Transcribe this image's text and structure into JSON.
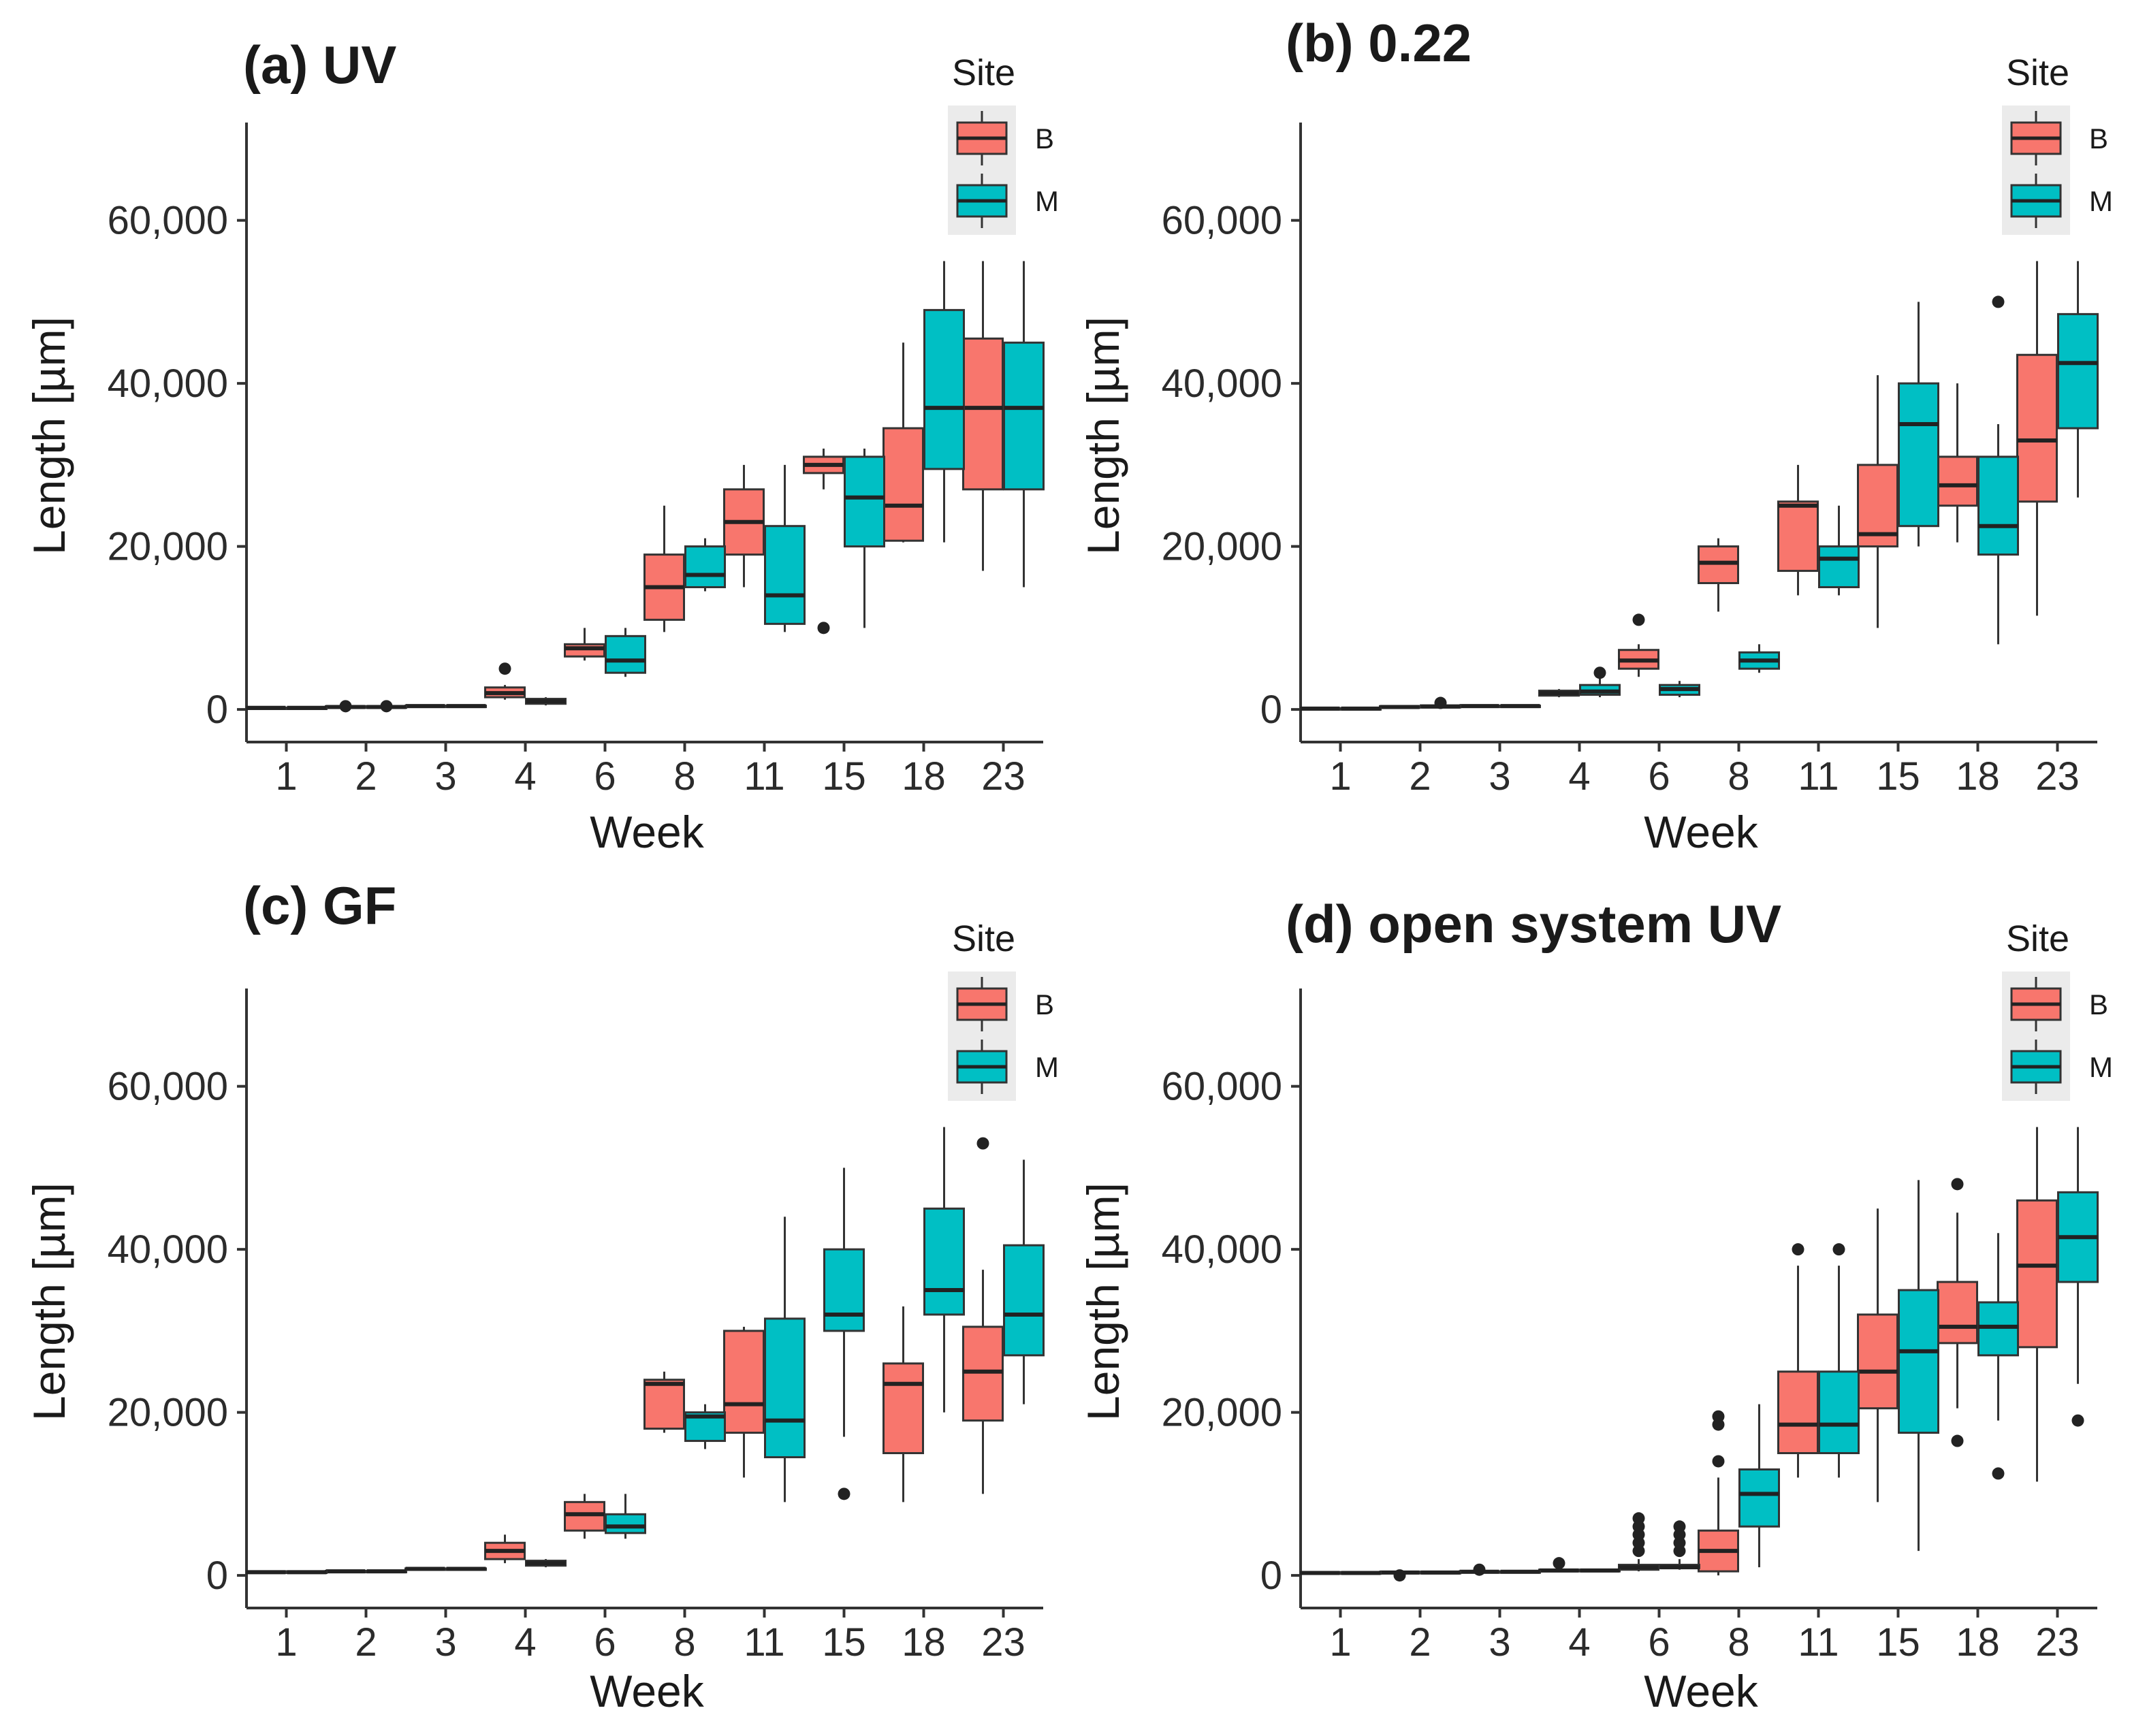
{
  "figure": {
    "colors": {
      "B": "#F8766D",
      "M": "#00BFC4",
      "outline": "#333333",
      "legend_bg": "#ebebeb"
    }
  },
  "chart_data": [
    {
      "type": "boxplot",
      "title": "(a) UV",
      "xlabel": "Week",
      "ylabel": "Length [µm]",
      "ylim": [
        -4000,
        72000
      ],
      "yticks": [
        0,
        20000,
        40000,
        60000
      ],
      "ytick_labels": [
        "0",
        "20,000",
        "40,000",
        "60,000"
      ],
      "categories": [
        "1",
        "2",
        "3",
        "4",
        "6",
        "8",
        "11",
        "15",
        "18",
        "23"
      ],
      "legend": {
        "title": "Site",
        "entries": [
          "B",
          "M"
        ]
      },
      "series": [
        {
          "name": "B",
          "boxes": [
            {
              "min": 150,
              "q1": 180,
              "median": 200,
              "q3": 220,
              "max": 250,
              "outliers": []
            },
            {
              "min": 150,
              "q1": 200,
              "median": 300,
              "q3": 400,
              "max": 500,
              "outliers": [
                400
              ]
            },
            {
              "min": 350,
              "q1": 380,
              "median": 420,
              "q3": 460,
              "max": 500,
              "outliers": []
            },
            {
              "min": 1200,
              "q1": 1500,
              "median": 2000,
              "q3": 2700,
              "max": 3000,
              "outliers": [
                5000
              ]
            },
            {
              "min": 6000,
              "q1": 6500,
              "median": 7500,
              "q3": 8000,
              "max": 10000,
              "outliers": []
            },
            {
              "min": 9500,
              "q1": 11000,
              "median": 15000,
              "q3": 19000,
              "max": 25000,
              "outliers": []
            },
            {
              "min": 15000,
              "q1": 19000,
              "median": 23000,
              "q3": 27000,
              "max": 30000,
              "outliers": []
            },
            {
              "min": 27000,
              "q1": 29000,
              "median": 30000,
              "q3": 31000,
              "max": 32000,
              "outliers": [
                10000
              ]
            },
            {
              "min": 20500,
              "q1": 20700,
              "median": 25000,
              "q3": 34500,
              "max": 45000,
              "outliers": []
            },
            {
              "min": 17000,
              "q1": 27000,
              "median": 37000,
              "q3": 45500,
              "max": 55000,
              "outliers": []
            }
          ]
        },
        {
          "name": "M",
          "boxes": [
            {
              "min": 150,
              "q1": 180,
              "median": 200,
              "q3": 220,
              "max": 250,
              "outliers": []
            },
            {
              "min": 150,
              "q1": 200,
              "median": 300,
              "q3": 400,
              "max": 500,
              "outliers": [
                400
              ]
            },
            {
              "min": 350,
              "q1": 380,
              "median": 420,
              "q3": 460,
              "max": 500,
              "outliers": []
            },
            {
              "min": 500,
              "q1": 700,
              "median": 1000,
              "q3": 1300,
              "max": 1500,
              "outliers": []
            },
            {
              "min": 4000,
              "q1": 4500,
              "median": 6000,
              "q3": 9000,
              "max": 10000,
              "outliers": []
            },
            {
              "min": 14500,
              "q1": 15000,
              "median": 16500,
              "q3": 20000,
              "max": 21000,
              "outliers": []
            },
            {
              "min": 9500,
              "q1": 10500,
              "median": 14000,
              "q3": 22500,
              "max": 30000,
              "outliers": []
            },
            {
              "min": 10000,
              "q1": 20000,
              "median": 26000,
              "q3": 31000,
              "max": 32000,
              "outliers": []
            },
            {
              "min": 20500,
              "q1": 29500,
              "median": 37000,
              "q3": 49000,
              "max": 55000,
              "outliers": []
            },
            {
              "min": 15000,
              "q1": 27000,
              "median": 37000,
              "q3": 45000,
              "max": 55000,
              "outliers": []
            }
          ]
        }
      ]
    },
    {
      "type": "boxplot",
      "title": "(b) 0.22",
      "xlabel": "Week",
      "ylabel": "Length [µm]",
      "ylim": [
        -4000,
        72000
      ],
      "yticks": [
        0,
        20000,
        40000,
        60000
      ],
      "ytick_labels": [
        "0",
        "20,000",
        "40,000",
        "60,000"
      ],
      "categories": [
        "1",
        "2",
        "3",
        "4",
        "6",
        "8",
        "11",
        "15",
        "18",
        "23"
      ],
      "legend": {
        "title": "Site",
        "entries": [
          "B",
          "M"
        ]
      },
      "series": [
        {
          "name": "B",
          "boxes": [
            {
              "min": 0,
              "q1": 50,
              "median": 100,
              "q3": 150,
              "max": 200,
              "outliers": []
            },
            {
              "min": 150,
              "q1": 200,
              "median": 300,
              "q3": 400,
              "max": 500,
              "outliers": []
            },
            {
              "min": 350,
              "q1": 380,
              "median": 420,
              "q3": 460,
              "max": 500,
              "outliers": []
            },
            {
              "min": 1500,
              "q1": 1700,
              "median": 2000,
              "q3": 2300,
              "max": 2500,
              "outliers": []
            },
            {
              "min": 4000,
              "q1": 5000,
              "median": 6000,
              "q3": 7300,
              "max": 8000,
              "outliers": [
                11000
              ]
            },
            {
              "min": 12000,
              "q1": 15500,
              "median": 18000,
              "q3": 20000,
              "max": 21000,
              "outliers": []
            },
            {
              "min": 14000,
              "q1": 17000,
              "median": 25000,
              "q3": 25500,
              "max": 30000,
              "outliers": []
            },
            {
              "min": 10000,
              "q1": 20000,
              "median": 21500,
              "q3": 30000,
              "max": 41000,
              "outliers": []
            },
            {
              "min": 20500,
              "q1": 25000,
              "median": 27500,
              "q3": 31000,
              "max": 40000,
              "outliers": []
            },
            {
              "min": 11500,
              "q1": 25500,
              "median": 33000,
              "q3": 43500,
              "max": 55000,
              "outliers": []
            }
          ]
        },
        {
          "name": "M",
          "boxes": [
            {
              "min": 0,
              "q1": 50,
              "median": 100,
              "q3": 150,
              "max": 200,
              "outliers": []
            },
            {
              "min": 150,
              "q1": 250,
              "median": 350,
              "q3": 500,
              "max": 800,
              "outliers": [
                800
              ]
            },
            {
              "min": 350,
              "q1": 380,
              "median": 420,
              "q3": 460,
              "max": 500,
              "outliers": []
            },
            {
              "min": 1500,
              "q1": 1800,
              "median": 2200,
              "q3": 3000,
              "max": 4500,
              "outliers": [
                4500
              ]
            },
            {
              "min": 1500,
              "q1": 1800,
              "median": 2500,
              "q3": 3000,
              "max": 3500,
              "outliers": []
            },
            {
              "min": 4500,
              "q1": 5000,
              "median": 6000,
              "q3": 7000,
              "max": 8000,
              "outliers": []
            },
            {
              "min": 14000,
              "q1": 15000,
              "median": 18500,
              "q3": 20000,
              "max": 25000,
              "outliers": []
            },
            {
              "min": 20000,
              "q1": 22500,
              "median": 35000,
              "q3": 40000,
              "max": 50000,
              "outliers": []
            },
            {
              "min": 8000,
              "q1": 19000,
              "median": 22500,
              "q3": 31000,
              "max": 35000,
              "outliers": [
                50000
              ]
            },
            {
              "min": 26000,
              "q1": 34500,
              "median": 42500,
              "q3": 48500,
              "max": 55000,
              "outliers": []
            }
          ]
        }
      ]
    },
    {
      "type": "boxplot",
      "title": "(c) GF",
      "xlabel": "Week",
      "ylabel": "Length [µm]",
      "ylim": [
        -4000,
        72000
      ],
      "yticks": [
        0,
        20000,
        40000,
        60000
      ],
      "ytick_labels": [
        "0",
        "20,000",
        "40,000",
        "60,000"
      ],
      "categories": [
        "1",
        "2",
        "3",
        "4",
        "6",
        "8",
        "11",
        "15",
        "18",
        "23"
      ],
      "legend": {
        "title": "Site",
        "entries": [
          "B",
          "M"
        ]
      },
      "series": [
        {
          "name": "B",
          "boxes": [
            {
              "min": 200,
              "q1": 300,
              "median": 400,
              "q3": 500,
              "max": 600,
              "outliers": []
            },
            {
              "min": 400,
              "q1": 450,
              "median": 500,
              "q3": 550,
              "max": 600,
              "outliers": []
            },
            {
              "min": 700,
              "q1": 750,
              "median": 800,
              "q3": 850,
              "max": 900,
              "outliers": []
            },
            {
              "min": 1500,
              "q1": 2000,
              "median": 3000,
              "q3": 4000,
              "max": 5000,
              "outliers": []
            },
            {
              "min": 4500,
              "q1": 5500,
              "median": 7500,
              "q3": 9000,
              "max": 10000,
              "outliers": []
            },
            {
              "min": 17500,
              "q1": 18000,
              "median": 23500,
              "q3": 24000,
              "max": 25000,
              "outliers": []
            },
            {
              "min": 12000,
              "q1": 17500,
              "median": 21000,
              "q3": 30000,
              "max": 30500,
              "outliers": []
            },
            null,
            {
              "min": 9000,
              "q1": 15000,
              "median": 23500,
              "q3": 26000,
              "max": 33000,
              "outliers": []
            },
            {
              "min": 10000,
              "q1": 19000,
              "median": 25000,
              "q3": 30500,
              "max": 37500,
              "outliers": [
                53000
              ]
            }
          ]
        },
        {
          "name": "M",
          "boxes": [
            {
              "min": 200,
              "q1": 300,
              "median": 400,
              "q3": 500,
              "max": 600,
              "outliers": []
            },
            {
              "min": 400,
              "q1": 450,
              "median": 500,
              "q3": 550,
              "max": 600,
              "outliers": []
            },
            {
              "min": 700,
              "q1": 750,
              "median": 800,
              "q3": 850,
              "max": 900,
              "outliers": []
            },
            {
              "min": 1000,
              "q1": 1200,
              "median": 1500,
              "q3": 1800,
              "max": 2000,
              "outliers": []
            },
            {
              "min": 4500,
              "q1": 5200,
              "median": 6000,
              "q3": 7500,
              "max": 10000,
              "outliers": []
            },
            {
              "min": 15500,
              "q1": 16500,
              "median": 19500,
              "q3": 20000,
              "max": 21000,
              "outliers": []
            },
            {
              "min": 9000,
              "q1": 14500,
              "median": 19000,
              "q3": 31500,
              "max": 44000,
              "outliers": []
            },
            {
              "min": 17000,
              "q1": 30000,
              "median": 32000,
              "q3": 40000,
              "max": 50000,
              "outliers": [
                10000
              ]
            },
            {
              "min": 20000,
              "q1": 32000,
              "median": 35000,
              "q3": 45000,
              "max": 55000,
              "outliers": []
            },
            {
              "min": 21000,
              "q1": 27000,
              "median": 32000,
              "q3": 40500,
              "max": 51000,
              "outliers": []
            }
          ]
        }
      ]
    },
    {
      "type": "boxplot",
      "title": "(d) open system UV",
      "xlabel": "Week",
      "ylabel": "Length [µm]",
      "ylim": [
        -4000,
        72000
      ],
      "yticks": [
        0,
        20000,
        40000,
        60000
      ],
      "ytick_labels": [
        "0",
        "20,000",
        "40,000",
        "60,000"
      ],
      "categories": [
        "1",
        "2",
        "3",
        "4",
        "6",
        "8",
        "11",
        "15",
        "18",
        "23"
      ],
      "legend": {
        "title": "Site",
        "entries": [
          "B",
          "M"
        ]
      },
      "series": [
        {
          "name": "B",
          "boxes": [
            {
              "min": 150,
              "q1": 200,
              "median": 300,
              "q3": 400,
              "max": 500,
              "outliers": []
            },
            {
              "min": 200,
              "q1": 250,
              "median": 350,
              "q3": 450,
              "max": 500,
              "outliers": [
                0
              ]
            },
            {
              "min": 350,
              "q1": 380,
              "median": 450,
              "q3": 500,
              "max": 600,
              "outliers": [
                700
              ]
            },
            {
              "min": 400,
              "q1": 500,
              "median": 600,
              "q3": 700,
              "max": 800,
              "outliers": [
                1500
              ]
            },
            {
              "min": 500,
              "q1": 700,
              "median": 1000,
              "q3": 1300,
              "max": 2000,
              "outliers": [
                3000,
                4000,
                5000,
                6000,
                7000
              ]
            },
            {
              "min": 0,
              "q1": 500,
              "median": 3000,
              "q3": 5500,
              "max": 12000,
              "outliers": [
                14000,
                18500,
                19500
              ]
            },
            {
              "min": 12000,
              "q1": 15000,
              "median": 18500,
              "q3": 25000,
              "max": 38000,
              "outliers": [
                40000
              ]
            },
            {
              "min": 9000,
              "q1": 20500,
              "median": 25000,
              "q3": 32000,
              "max": 45000,
              "outliers": []
            },
            {
              "min": 20500,
              "q1": 28500,
              "median": 30500,
              "q3": 36000,
              "max": 44500,
              "outliers": [
                16500,
                48000
              ]
            },
            {
              "min": 11500,
              "q1": 28000,
              "median": 38000,
              "q3": 46000,
              "max": 55000,
              "outliers": []
            }
          ]
        },
        {
          "name": "M",
          "boxes": [
            {
              "min": 150,
              "q1": 200,
              "median": 300,
              "q3": 400,
              "max": 500,
              "outliers": []
            },
            {
              "min": 200,
              "q1": 250,
              "median": 350,
              "q3": 450,
              "max": 500,
              "outliers": []
            },
            {
              "min": 350,
              "q1": 380,
              "median": 450,
              "q3": 500,
              "max": 600,
              "outliers": []
            },
            {
              "min": 400,
              "q1": 500,
              "median": 600,
              "q3": 700,
              "max": 800,
              "outliers": []
            },
            {
              "min": 700,
              "q1": 900,
              "median": 1000,
              "q3": 1300,
              "max": 2000,
              "outliers": [
                3000,
                4000,
                5000,
                6000
              ]
            },
            {
              "min": 1000,
              "q1": 6000,
              "median": 10000,
              "q3": 13000,
              "max": 21000,
              "outliers": []
            },
            {
              "min": 12000,
              "q1": 15000,
              "median": 18500,
              "q3": 25000,
              "max": 38000,
              "outliers": [
                40000
              ]
            },
            {
              "min": 3000,
              "q1": 17500,
              "median": 27500,
              "q3": 35000,
              "max": 48500,
              "outliers": []
            },
            {
              "min": 19000,
              "q1": 27000,
              "median": 30500,
              "q3": 33500,
              "max": 42000,
              "outliers": [
                12500
              ]
            },
            {
              "min": 23500,
              "q1": 36000,
              "median": 41500,
              "q3": 47000,
              "max": 55000,
              "outliers": [
                19000
              ]
            }
          ]
        }
      ]
    }
  ]
}
